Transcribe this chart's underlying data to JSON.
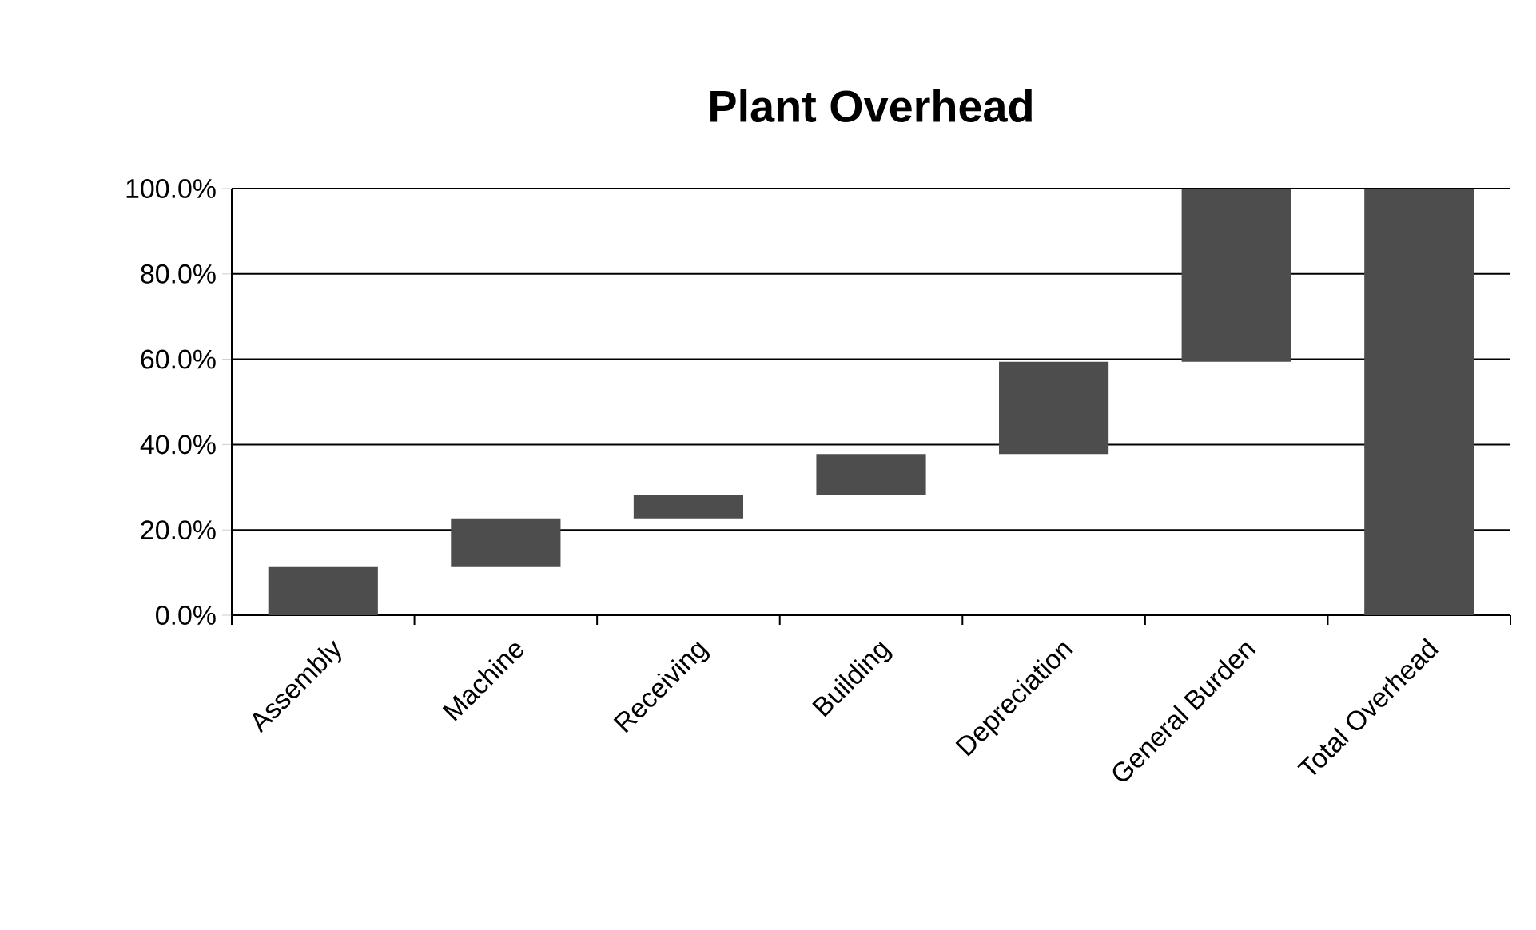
{
  "chart_data": {
    "type": "bar",
    "title": "Plant Overhead",
    "categories": [
      "Assembly",
      "Machine",
      "Receiving",
      "Building",
      "Depreciation",
      "General Burden",
      "Total Overhead"
    ],
    "values": [
      11.3,
      11.4,
      5.4,
      9.7,
      21.6,
      40.6,
      100
    ],
    "base": [
      0,
      11.3,
      22.7,
      28.1,
      37.8,
      59.4,
      0
    ],
    "color": "#4d4d4d",
    "ylim": [
      0,
      100
    ],
    "yticks": [
      {
        "value": 0,
        "label": "0.0%"
      },
      {
        "value": 20,
        "label": "20.0%"
      },
      {
        "value": 40,
        "label": "40.0%"
      },
      {
        "value": 60,
        "label": "60.0%"
      },
      {
        "value": 80,
        "label": "80.0%"
      },
      {
        "value": 100,
        "label": "100.0%"
      }
    ],
    "grid": "y"
  }
}
